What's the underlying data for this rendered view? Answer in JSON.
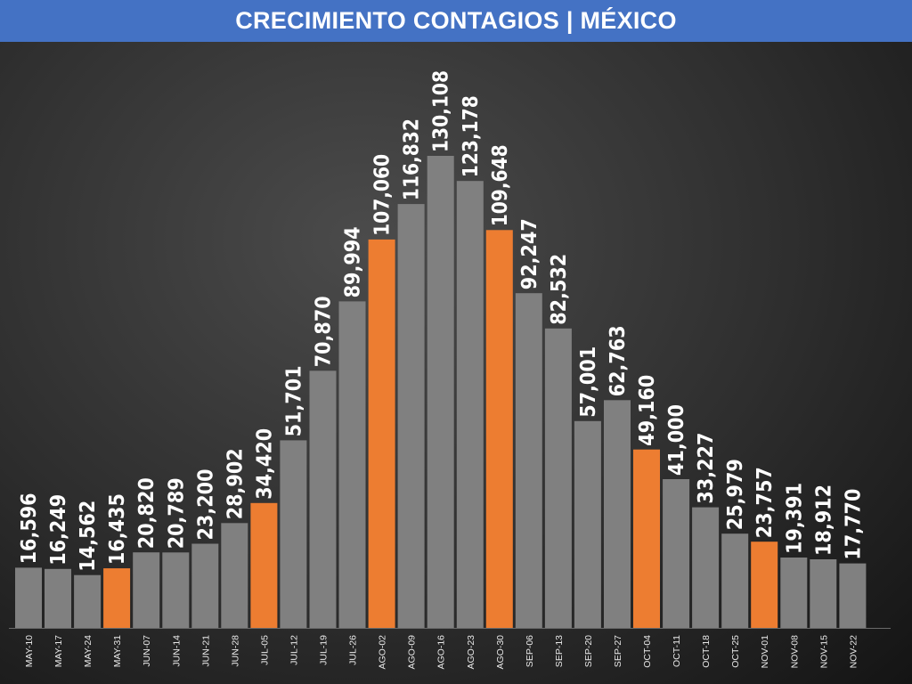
{
  "header": {
    "title": "CRECIMIENTO CONTAGIOS | MÉXICO"
  },
  "colors": {
    "title_bar": "#4472c4",
    "bar_default": "#808080",
    "bar_highlight": "#ed7d31",
    "label": "#ffffff"
  },
  "chart_data": {
    "type": "bar",
    "title": "CRECIMIENTO CONTAGIOS | MÉXICO",
    "xlabel": "",
    "ylabel": "",
    "ylim": [
      0,
      140000
    ],
    "grid": false,
    "legend": "none",
    "categories": [
      "MAY-10",
      "MAY-17",
      "MAY-24",
      "MAY-31",
      "JUN-07",
      "JUN-14",
      "JUN-21",
      "JUN-28",
      "JUL-05",
      "JUL-12",
      "JUL-19",
      "JUL-26",
      "AGO-02",
      "AGO-09",
      "AGO-16",
      "AGO-23",
      "AGO-30",
      "SEP-06",
      "SEP-13",
      "SEP-20",
      "SEP-27",
      "OCT-04",
      "OCT-11",
      "OCT-18",
      "OCT-25",
      "NOV-01",
      "NOV-08",
      "NOV-15",
      "NOV-22"
    ],
    "values": [
      16596,
      16249,
      14562,
      16435,
      20820,
      20789,
      23200,
      28902,
      34420,
      51701,
      70870,
      89994,
      107060,
      116832,
      130108,
      123178,
      109648,
      92247,
      82532,
      57001,
      62763,
      49160,
      41000,
      33227,
      25979,
      23757,
      19391,
      18912,
      17770
    ],
    "value_labels": [
      "16,596",
      "16,249",
      "14,562",
      "16,435",
      "20,820",
      "20,789",
      "23,200",
      "28,902",
      "34,420",
      "51,701",
      "70,870",
      "89,994",
      "107,060",
      "116,832",
      "130,108",
      "123,178",
      "109,648",
      "92,247",
      "82,532",
      "57,001",
      "62,763",
      "49,160",
      "41,000",
      "33,227",
      "25,979",
      "23,757",
      "19,391",
      "18,912",
      "17,770"
    ],
    "highlighted": [
      "MAY-31",
      "JUL-05",
      "AGO-02",
      "AGO-30",
      "OCT-04",
      "NOV-01"
    ]
  }
}
